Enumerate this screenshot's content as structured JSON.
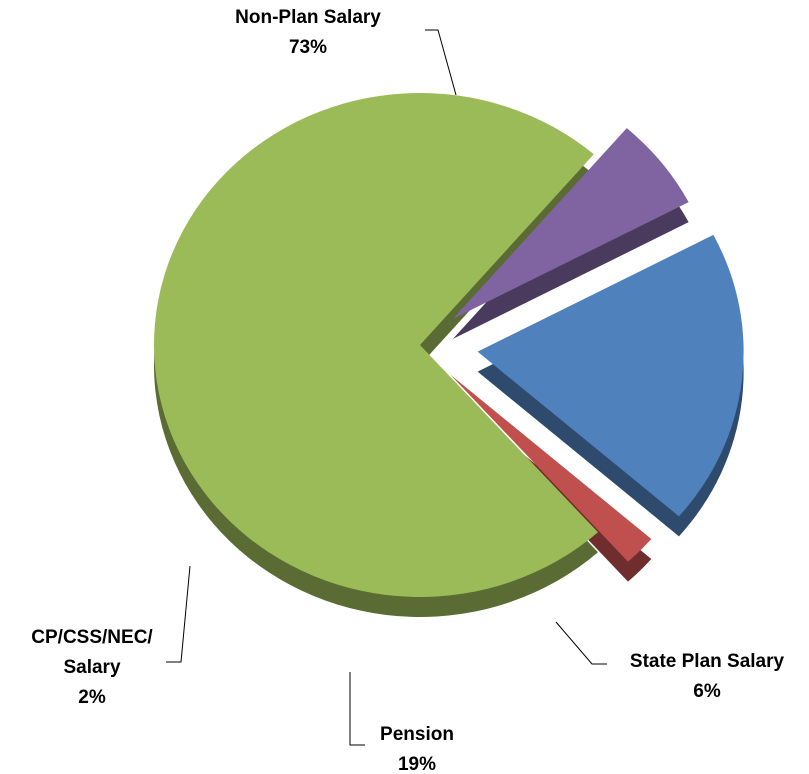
{
  "chart_data": {
    "type": "pie3d",
    "categories": [
      "Non-Plan Salary",
      "State Plan Salary",
      "Pension",
      "CP/CSS/NEC/\nSalary"
    ],
    "values": [
      73,
      6,
      19,
      2
    ],
    "value_labels": [
      "73%",
      "6%",
      "19%",
      "2%"
    ],
    "colors": [
      "#9bbb59",
      "#8064a2",
      "#4f81bd",
      "#c0504d"
    ]
  }
}
